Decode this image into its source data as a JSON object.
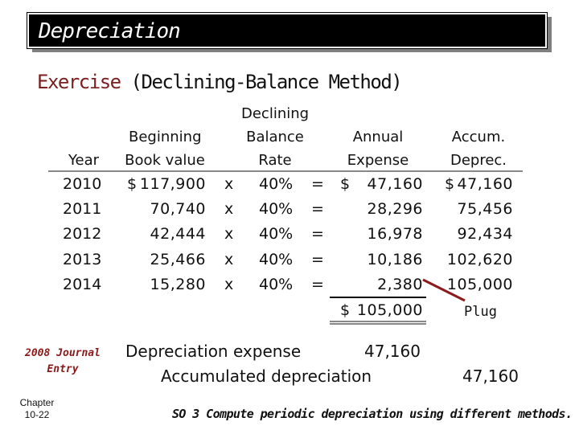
{
  "title": "Depreciation",
  "subtitle": {
    "part1": "Exercise",
    "part2": "(Declining-Balance Method)"
  },
  "table": {
    "headers": {
      "year": "Year",
      "beginning_line1": "Beginning",
      "beginning_line2": "Book value",
      "rate_line1": "Declining",
      "rate_line2": "Balance",
      "rate_line3": "Rate",
      "expense_line1": "Annual",
      "expense_line2": "Expense",
      "accum_line1": "Accum.",
      "accum_line2": "Deprec."
    },
    "rows": [
      {
        "year": "2010",
        "cur": "$",
        "book": "117,900",
        "x": "x",
        "rate": "40%",
        "eq": "=",
        "ecur": "$",
        "expense": "47,160",
        "acur": "$",
        "accum": "47,160"
      },
      {
        "year": "2011",
        "cur": "",
        "book": "70,740",
        "x": "x",
        "rate": "40%",
        "eq": "=",
        "ecur": "",
        "expense": "28,296",
        "acur": "",
        "accum": "75,456"
      },
      {
        "year": "2012",
        "cur": "",
        "book": "42,444",
        "x": "x",
        "rate": "40%",
        "eq": "=",
        "ecur": "",
        "expense": "16,978",
        "acur": "",
        "accum": "92,434"
      },
      {
        "year": "2013",
        "cur": "",
        "book": "25,466",
        "x": "x",
        "rate": "40%",
        "eq": "=",
        "ecur": "",
        "expense": "10,186",
        "acur": "",
        "accum": "102,620"
      },
      {
        "year": "2014",
        "cur": "",
        "book": "15,280",
        "x": "x",
        "rate": "40%",
        "eq": "=",
        "ecur": "",
        "expense": "2,380",
        "acur": "",
        "accum": "105,000"
      }
    ],
    "total": {
      "cur": "$",
      "amount": "105,000"
    },
    "plug": "Plug"
  },
  "journal": {
    "label_line1": "2008 Journal",
    "label_line2": "Entry",
    "debit_account": "Depreciation expense",
    "debit_amount": "47,160",
    "credit_account": "Accumulated depreciation",
    "credit_amount": "47,160"
  },
  "footer": {
    "chapter_line1": "Chapter",
    "chapter_line2": "10-22",
    "objective": "SO 3  Compute periodic depreciation using different methods."
  }
}
